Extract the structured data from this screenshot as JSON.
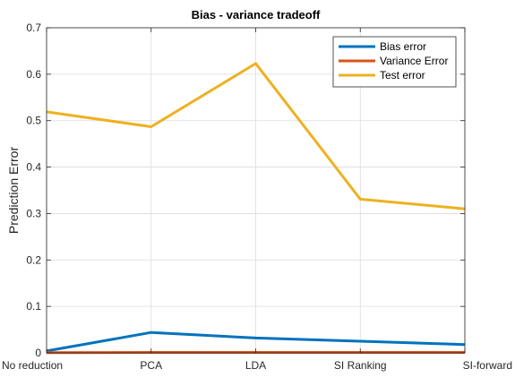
{
  "chart_data": {
    "type": "line",
    "title": "Bias - variance tradeoff",
    "xlabel": "",
    "ylabel": "Prediction Error",
    "categories": [
      "No reduction",
      "PCA",
      "LDA",
      "SI Ranking",
      "SI-forward"
    ],
    "ylim": [
      0,
      0.7
    ],
    "yticks": [
      0,
      0.1,
      0.2,
      0.3,
      0.4,
      0.5,
      0.6,
      0.7
    ],
    "ytick_labels": [
      "0",
      "0.1",
      "0.2",
      "0.3",
      "0.4",
      "0.5",
      "0.6",
      "0.7"
    ],
    "grid": true,
    "legend_position": "top-right",
    "series": [
      {
        "name": "Bias error",
        "color": "#0072BD",
        "values": [
          0.004,
          0.044,
          0.032,
          0.025,
          0.018
        ]
      },
      {
        "name": "Variance Error",
        "color": "#D95319",
        "values": [
          0.0005,
          0.001,
          0.001,
          0.001,
          0.001
        ]
      },
      {
        "name": "Test error",
        "color": "#EDB120",
        "values": [
          0.519,
          0.487,
          0.623,
          0.331,
          0.31
        ]
      }
    ]
  }
}
